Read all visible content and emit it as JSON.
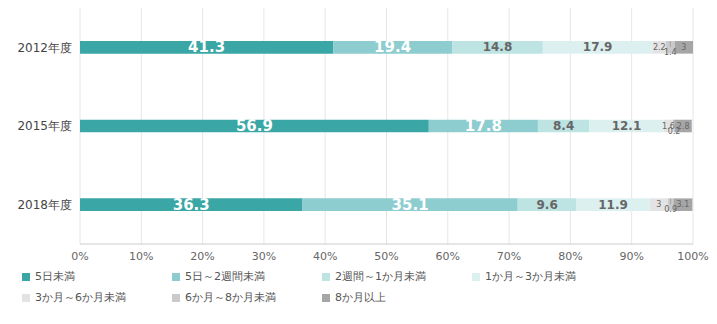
{
  "chart_data": {
    "type": "bar",
    "orientation": "horizontal",
    "stacked": true,
    "data_labels": true,
    "grid": true,
    "legend": "bottom",
    "categories": [
      "2012年度",
      "2015年度",
      "2018年度"
    ],
    "xlim": [
      0,
      100
    ],
    "xticks": [
      {
        "value": 0,
        "label": "0%"
      },
      {
        "value": 10,
        "label": "10%"
      },
      {
        "value": 20,
        "label": "20%"
      },
      {
        "value": 30,
        "label": "30%"
      },
      {
        "value": 40,
        "label": "40%"
      },
      {
        "value": 50,
        "label": "50%"
      },
      {
        "value": 60,
        "label": "60%"
      },
      {
        "value": 70,
        "label": "70%"
      },
      {
        "value": 80,
        "label": "80%"
      },
      {
        "value": 90,
        "label": "90%"
      },
      {
        "value": 100,
        "label": "100%"
      }
    ],
    "series": [
      {
        "name": "5日未満",
        "color": "#3aa6a6",
        "values": [
          41.3,
          56.9,
          36.3
        ]
      },
      {
        "name": "5日～2週間未満",
        "color": "#8ecdcf",
        "values": [
          19.4,
          17.8,
          35.1
        ]
      },
      {
        "name": "2週間～1か月未満",
        "color": "#bde3e3",
        "values": [
          14.8,
          8.4,
          9.6
        ]
      },
      {
        "name": "1か月～3か月未満",
        "color": "#dcf0f0",
        "values": [
          17.9,
          12.1,
          11.9
        ]
      },
      {
        "name": "3か月～6か月未満",
        "color": "#e3e3e3",
        "values": [
          2.2,
          1.6,
          3
        ]
      },
      {
        "name": "6か月～8か月未満",
        "color": "#cacaca",
        "values": [
          1.4,
          0.2,
          0.9
        ]
      },
      {
        "name": "8か月以上",
        "color": "#a6a6a6",
        "values": [
          3,
          2.8,
          3.1
        ]
      }
    ]
  }
}
